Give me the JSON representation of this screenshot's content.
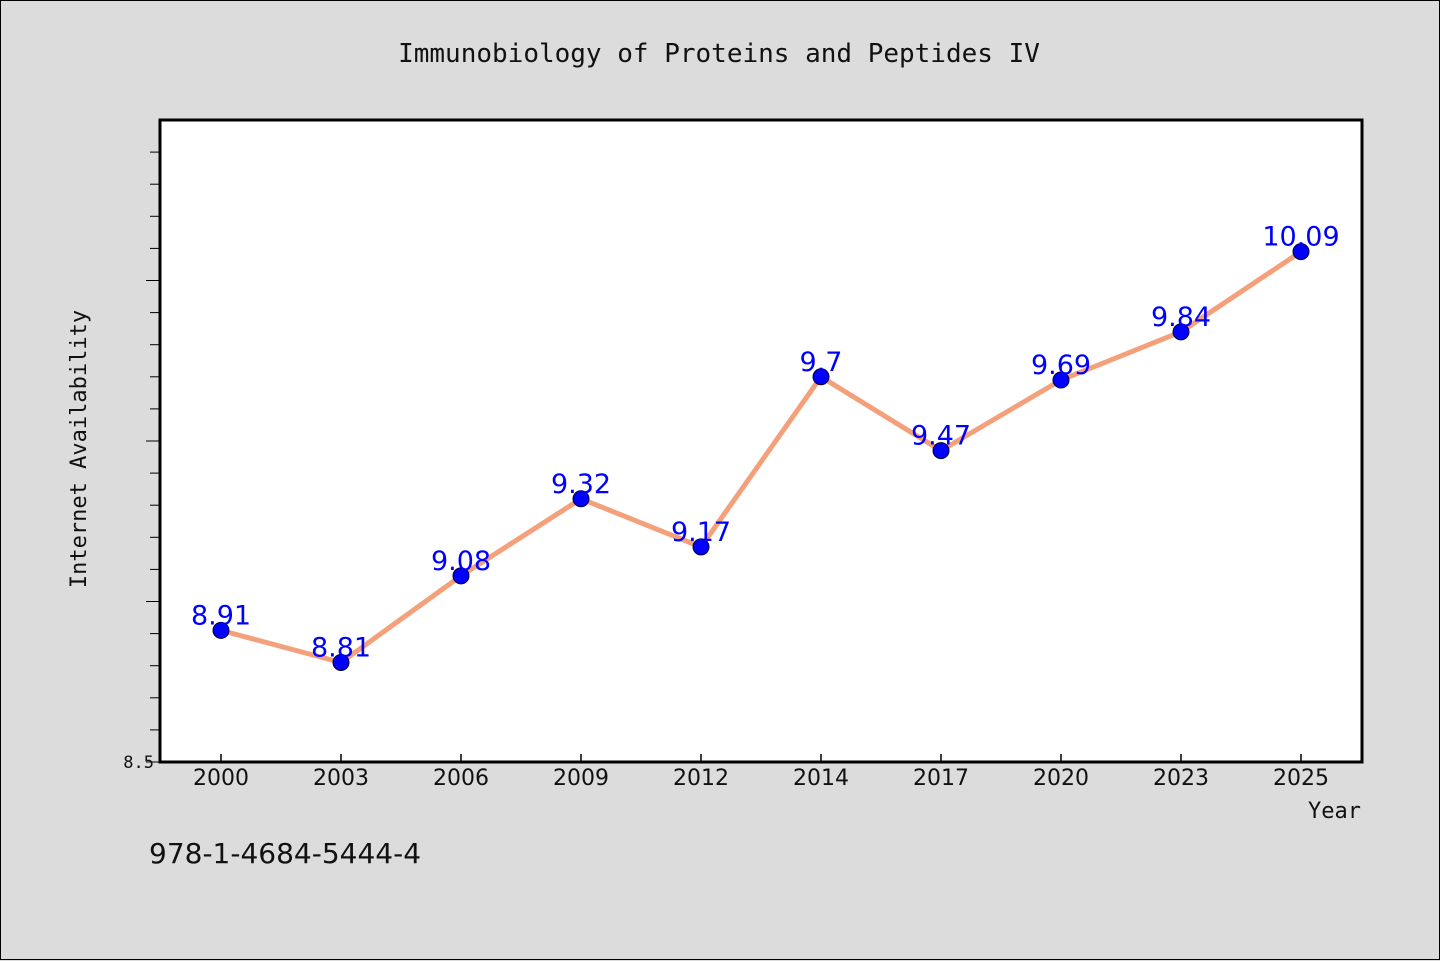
{
  "chart_data": {
    "type": "line",
    "title": "Immunobiology of Proteins and Peptides IV",
    "xlabel": "Year",
    "ylabel": "Internet Availability",
    "categories": [
      "2000",
      "2003",
      "2006",
      "2009",
      "2012",
      "2014",
      "2017",
      "2020",
      "2023",
      "2025"
    ],
    "series": [
      {
        "values": [
          8.91,
          8.81,
          9.08,
          9.32,
          9.17,
          9.7,
          9.47,
          9.69,
          9.84,
          10.09
        ],
        "labels": [
          "8.91",
          "8.81",
          "9.08",
          "9.32",
          "9.17",
          "9.7",
          "9.47",
          "9.69",
          "9.84",
          "10.09"
        ]
      }
    ],
    "ylim": [
      8.5,
      10.5
    ],
    "yticks_labeled": [
      {
        "value": 8.5,
        "label": "8.5"
      }
    ],
    "minor_tick_step": 0.1,
    "grid": false,
    "line_color": "#f4a07a",
    "marker_color": "#0000ff",
    "label_color": "#0000ff"
  },
  "footer": {
    "isbn": "978-1-4684-5444-4"
  }
}
